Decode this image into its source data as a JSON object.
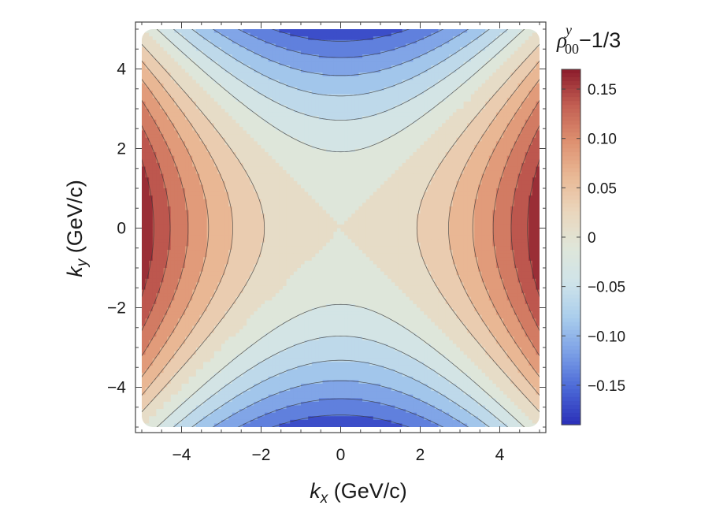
{
  "chart_data": {
    "type": "heatmap",
    "subtype": "contour",
    "function": "rho00y-1/3 = 0.0068*(kx^2 - ky^2)",
    "x": [
      -5,
      5
    ],
    "y": [
      -5,
      5
    ],
    "xlabel": {
      "var": "k",
      "sub": "x",
      "unit": " (GeV/c)"
    },
    "ylabel": {
      "var": "k",
      "sub": "y",
      "unit": " (GeV/c)"
    },
    "xlim": [
      -5,
      5
    ],
    "ylim": [
      -5,
      5
    ],
    "xticks": [
      -4,
      -2,
      0,
      2,
      4
    ],
    "yticks": [
      -4,
      -2,
      0,
      2,
      4
    ],
    "xtick_labels": [
      "−4",
      "−2",
      "0",
      "2",
      "4"
    ],
    "ytick_labels": [
      "−4",
      "−2",
      "0",
      "2",
      "4"
    ],
    "contour_levels": [
      -0.15,
      -0.125,
      -0.1,
      -0.075,
      -0.05,
      -0.025,
      0,
      0.025,
      0.05,
      0.075,
      0.1,
      0.125,
      0.15
    ],
    "colorbar": {
      "title": {
        "symbol": "ρ",
        "sup": "y",
        "sub": "00",
        "suffix": "−1/3"
      },
      "range": [
        -0.19,
        0.17
      ],
      "ticks": [
        0.15,
        0.1,
        0.05,
        0,
        -0.05,
        -0.1,
        -0.15
      ],
      "tick_labels": [
        "0.15",
        "0.10",
        "0.05",
        "0",
        "−0.05",
        "−0.10",
        "−0.15"
      ]
    },
    "colormap": [
      "#2a2fb8",
      "#4a67d6",
      "#7a9ee6",
      "#a9cdec",
      "#cfe3e9",
      "#dfe6d9",
      "#ead6bc",
      "#e9b895",
      "#dd8f6f",
      "#c25e52",
      "#8b1b2b"
    ],
    "grid": false,
    "legend": "right"
  }
}
